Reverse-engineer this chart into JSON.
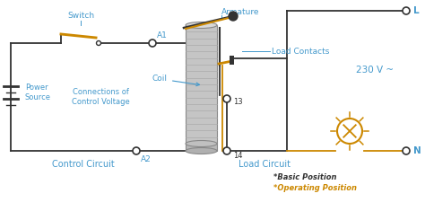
{
  "bg_color": "#ffffff",
  "dk": "#333333",
  "bl": "#4499cc",
  "or_": "#cc8800",
  "title_note_black": "*Basic Position",
  "title_note_orange": "*Operating Position",
  "label_switch": "Switch",
  "label_armature": "Armature",
  "label_a1": "A1",
  "label_a2": "A2",
  "label_coil": "Coil",
  "label_power": "Power\nSource",
  "label_connections": "Connections of\nControl Voltage",
  "label_control": "Control Circuit",
  "label_load_contacts": "Load Contacts",
  "label_13": "13",
  "label_14": "14",
  "label_load_circuit": "Load Circuit",
  "label_L": "L",
  "label_N": "N",
  "label_230v": "230 V ~"
}
